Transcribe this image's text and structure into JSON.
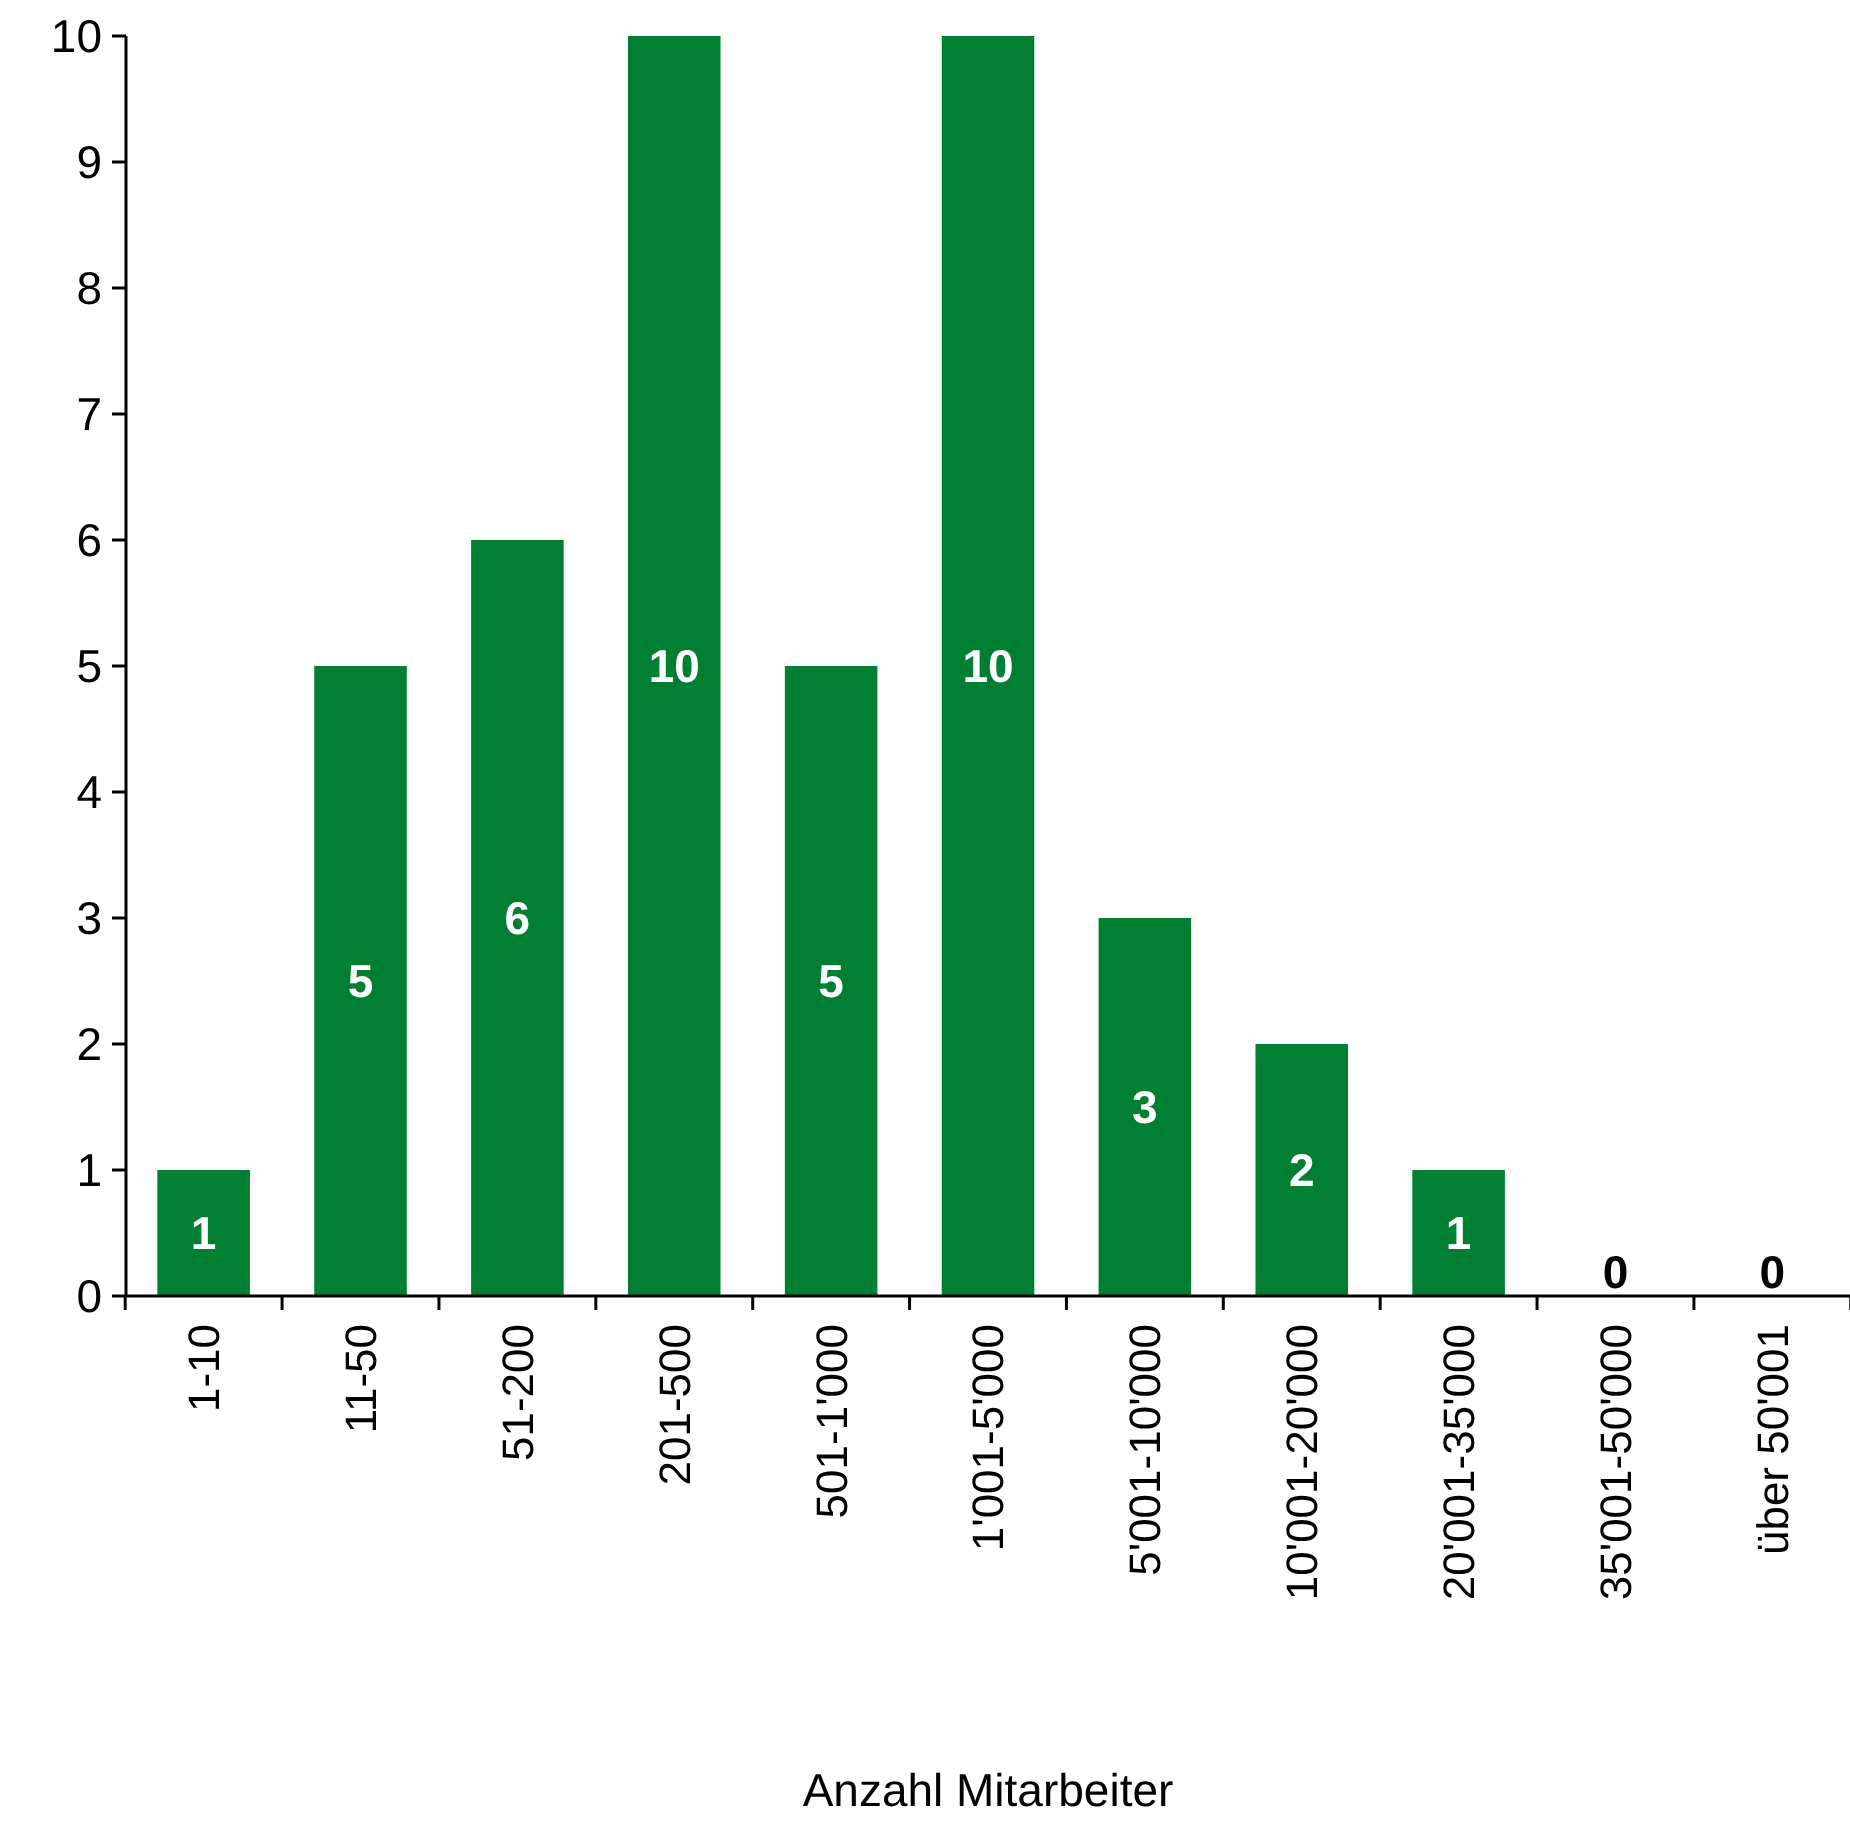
{
  "chart_data": {
    "type": "bar",
    "xlabel": "Anzahl Mitarbeiter",
    "categories": [
      "1-10",
      "11-50",
      "51-200",
      "201-500",
      "501-1'000",
      "1'001-5'000",
      "5'001-10'000",
      "10'001-20'000",
      "20'001-35'000",
      "35'001-50'000",
      "über 50'001"
    ],
    "values": [
      1,
      5,
      6,
      10,
      5,
      10,
      3,
      2,
      1,
      0,
      0
    ],
    "color": "#007f32",
    "ylim": [
      0,
      10
    ],
    "yticks": [
      0,
      1,
      2,
      3,
      4,
      5,
      6,
      7,
      8,
      9,
      10
    ],
    "data_labels": true
  }
}
